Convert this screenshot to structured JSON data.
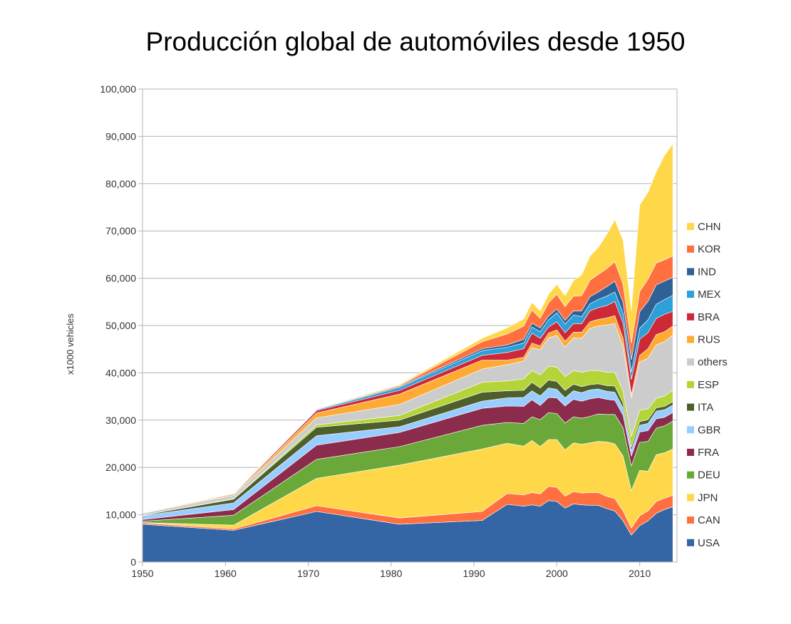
{
  "chart_data": {
    "type": "area",
    "stacked": true,
    "title": "Producción global de automóviles desde 1950",
    "xlabel": "",
    "ylabel": "x1000 vehicles",
    "xlim": [
      1950,
      2014.5
    ],
    "ylim": [
      0,
      100000
    ],
    "x_ticks": [
      "1950",
      "1960",
      "1970",
      "1980",
      "1990",
      "2000",
      "2010"
    ],
    "y_ticks": [
      "0",
      "10,000",
      "20,000",
      "30,000",
      "40,000",
      "50,000",
      "60,000",
      "70,000",
      "80,000",
      "90,000",
      "100,000"
    ],
    "grid": true,
    "legend_position": "right",
    "x": [
      1950,
      1961,
      1971,
      1981,
      1991,
      1994,
      1996,
      1997,
      1998,
      1999,
      2000,
      2001,
      2002,
      2003,
      2004,
      2005,
      2006,
      2007,
      2008,
      2009,
      2010,
      2011,
      2012,
      2013,
      2014
    ],
    "series": [
      {
        "name": "USA",
        "color": "#3465a4",
        "values": [
          8000,
          6700,
          10700,
          8000,
          8800,
          12200,
          11800,
          12100,
          11800,
          13000,
          12800,
          11400,
          12300,
          12100,
          12000,
          12000,
          11300,
          10800,
          8700,
          5700,
          7700,
          8700,
          10300,
          11100,
          11700
        ]
      },
      {
        "name": "CAN",
        "color": "#ff6f3f",
        "values": [
          300,
          300,
          1200,
          1300,
          1900,
          2300,
          2400,
          2600,
          2600,
          3000,
          3000,
          2500,
          2600,
          2500,
          2700,
          2700,
          2600,
          2600,
          2100,
          1500,
          2100,
          2100,
          2500,
          2400,
          2400
        ]
      },
      {
        "name": "JPN",
        "color": "#ffd84a",
        "values": [
          30,
          800,
          5800,
          11200,
          13200,
          10600,
          10300,
          11000,
          10000,
          9900,
          10100,
          9800,
          10300,
          10300,
          10500,
          10800,
          11500,
          11600,
          11600,
          7900,
          9600,
          8400,
          9900,
          9600,
          9800
        ]
      },
      {
        "name": "DEU",
        "color": "#6aa83a",
        "values": [
          300,
          2100,
          4000,
          3900,
          5000,
          4400,
          4800,
          5000,
          5700,
          5700,
          5500,
          5700,
          5500,
          5500,
          5600,
          5800,
          5800,
          6200,
          6000,
          5200,
          5900,
          6300,
          5600,
          5700,
          5900
        ]
      },
      {
        "name": "FRA",
        "color": "#8c2c4d",
        "values": [
          350,
          1200,
          3000,
          3000,
          3600,
          3500,
          3600,
          3600,
          3000,
          3200,
          3300,
          3600,
          3700,
          3600,
          3700,
          3500,
          3200,
          3000,
          2600,
          2100,
          2200,
          2300,
          2000,
          1800,
          1800
        ]
      },
      {
        "name": "GBR",
        "color": "#99ccff",
        "values": [
          800,
          1400,
          2000,
          1200,
          1500,
          1700,
          1900,
          1900,
          2000,
          2000,
          1800,
          1700,
          1800,
          1800,
          1900,
          1800,
          1700,
          1700,
          1600,
          1100,
          1400,
          1500,
          1600,
          1600,
          1600
        ]
      },
      {
        "name": "ITA",
        "color": "#4e5f2c",
        "values": [
          120,
          800,
          1800,
          1400,
          1900,
          1500,
          1500,
          1800,
          1700,
          1700,
          1700,
          1600,
          1400,
          1300,
          1100,
          1100,
          1200,
          1300,
          1000,
          800,
          800,
          800,
          700,
          700,
          700
        ]
      },
      {
        "name": "ESP",
        "color": "#b5d43a",
        "values": [
          0,
          100,
          500,
          1000,
          2100,
          2100,
          2400,
          2500,
          2800,
          2900,
          3000,
          2900,
          2900,
          3000,
          3000,
          2800,
          2800,
          2900,
          2500,
          2200,
          2400,
          2300,
          2000,
          2200,
          2400
        ]
      },
      {
        "name": "others",
        "color": "#cccccc",
        "values": [
          400,
          700,
          1500,
          2300,
          2800,
          3400,
          3800,
          4800,
          5300,
          6000,
          6700,
          6200,
          6900,
          7200,
          8900,
          9400,
          10000,
          10300,
          9400,
          8200,
          10200,
          10700,
          11300,
          11500,
          11700
        ]
      },
      {
        "name": "RUS",
        "color": "#ffaa33",
        "values": [
          100,
          200,
          1000,
          2200,
          1900,
          1000,
          800,
          1000,
          800,
          1000,
          1200,
          1300,
          1200,
          1300,
          1400,
          1400,
          1500,
          1700,
          1800,
          700,
          1400,
          2000,
          2200,
          2100,
          1900
        ]
      },
      {
        "name": "BRA",
        "color": "#cc2a36",
        "values": [
          0,
          150,
          500,
          800,
          1000,
          1600,
          1800,
          2100,
          1600,
          1300,
          1700,
          1800,
          1800,
          1800,
          2300,
          2500,
          2600,
          3000,
          3200,
          3200,
          3400,
          3400,
          3400,
          3700,
          3100
        ]
      },
      {
        "name": "MEX",
        "color": "#2d9fd9",
        "values": [
          0,
          50,
          200,
          600,
          1000,
          1100,
          1200,
          1300,
          1400,
          1500,
          1900,
          1800,
          1800,
          1500,
          1500,
          1700,
          2000,
          2000,
          2100,
          1600,
          2300,
          2700,
          3000,
          3100,
          3400
        ]
      },
      {
        "name": "IND",
        "color": "#2f6196",
        "values": [
          0,
          50,
          100,
          200,
          400,
          500,
          800,
          800,
          800,
          800,
          800,
          800,
          900,
          1200,
          1500,
          1600,
          2000,
          2300,
          2300,
          2600,
          3500,
          3900,
          4100,
          3900,
          3800
        ]
      },
      {
        "name": "KOR",
        "color": "#ff6f3f",
        "values": [
          0,
          0,
          50,
          200,
          1500,
          2300,
          2800,
          2800,
          2000,
          2800,
          3100,
          2900,
          3100,
          3200,
          3500,
          3700,
          3800,
          4100,
          3800,
          3500,
          4300,
          4700,
          4600,
          4500,
          4500
        ]
      },
      {
        "name": "CHN",
        "color": "#ffd84a",
        "values": [
          0,
          0,
          100,
          200,
          700,
          1300,
          1500,
          1600,
          1600,
          1800,
          2100,
          2300,
          3300,
          4400,
          5100,
          5700,
          7200,
          8900,
          9300,
          6800,
          18300,
          18400,
          19300,
          22100,
          23700
        ]
      }
    ]
  }
}
